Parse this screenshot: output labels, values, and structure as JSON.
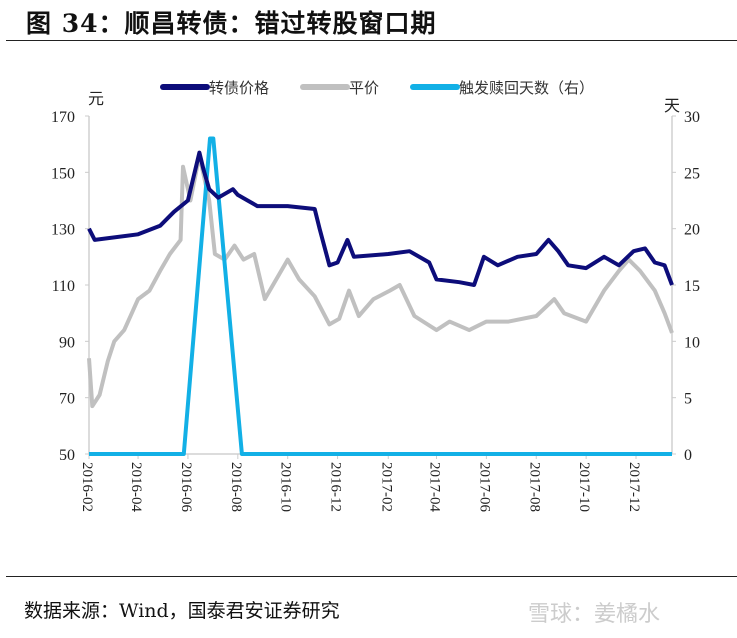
{
  "title": "图 34：顺昌转债：错过转股窗口期",
  "source": "数据来源：Wind，国泰君安证券研究",
  "watermark": "雪球：姜橘水",
  "chart_data": {
    "type": "line",
    "title": "",
    "left_unit": "元",
    "right_unit": "天",
    "ylim_left": [
      50,
      170
    ],
    "yticks_left": [
      50,
      70,
      90,
      110,
      130,
      150,
      170
    ],
    "ylim_right": [
      0,
      30
    ],
    "yticks_right": [
      0,
      5,
      10,
      15,
      20,
      25,
      30
    ],
    "xticks": [
      "2016-02",
      "2016-04",
      "2016-06",
      "2016-08",
      "2016-10",
      "2016-12",
      "2017-02",
      "2017-04",
      "2017-06",
      "2017-08",
      "2017-10",
      "2017-12"
    ],
    "xrange": [
      "2016-02-01",
      "2018-01-14"
    ],
    "grid": false,
    "legend": "top",
    "series": [
      {
        "name": "转债价格",
        "axis": "left",
        "color": "#0d0d7a",
        "x": [
          "2016-02-01",
          "2016-02-08",
          "2016-04-01",
          "2016-04-28",
          "2016-05-15",
          "2016-06-01",
          "2016-06-15",
          "2016-06-20",
          "2016-06-27",
          "2016-07-08",
          "2016-07-26",
          "2016-08-01",
          "2016-08-13",
          "2016-08-25",
          "2016-10-01",
          "2016-11-03",
          "2016-11-09",
          "2016-11-21",
          "2016-12-01",
          "2016-12-13",
          "2016-12-21",
          "2017-02-01",
          "2017-02-27",
          "2017-03-23",
          "2017-04-01",
          "2017-04-29",
          "2017-05-17",
          "2017-05-29",
          "2017-06-15",
          "2017-07-09",
          "2017-08-01",
          "2017-08-16",
          "2017-08-28",
          "2017-09-09",
          "2017-10-01",
          "2017-10-23",
          "2017-11-10",
          "2017-11-28",
          "2017-12-12",
          "2017-12-24",
          "2018-01-05",
          "2018-01-14"
        ],
        "y": [
          130,
          126,
          128,
          131,
          136,
          140,
          157,
          151,
          144,
          141,
          144,
          142,
          140,
          138,
          138,
          137,
          130,
          117,
          118,
          126,
          120,
          121,
          122,
          118,
          112,
          111,
          110,
          120,
          117,
          120,
          121,
          126,
          122,
          117,
          116,
          120,
          117,
          122,
          123,
          118,
          117,
          110
        ]
      },
      {
        "name": "平价",
        "axis": "left",
        "color": "#c0c0c0",
        "x": [
          "2016-02-01",
          "2016-02-05",
          "2016-02-14",
          "2016-02-24",
          "2016-03-03",
          "2016-03-15",
          "2016-04-01",
          "2016-04-15",
          "2016-04-28",
          "2016-05-10",
          "2016-05-23",
          "2016-05-26",
          "2016-06-04",
          "2016-06-15",
          "2016-06-27",
          "2016-07-04",
          "2016-07-16",
          "2016-07-28",
          "2016-08-08",
          "2016-08-21",
          "2016-09-03",
          "2016-10-01",
          "2016-10-15",
          "2016-11-03",
          "2016-11-21",
          "2016-12-03",
          "2016-12-15",
          "2016-12-27",
          "2017-01-14",
          "2017-02-03",
          "2017-02-15",
          "2017-03-05",
          "2017-04-01",
          "2017-04-17",
          "2017-05-11",
          "2017-06-01",
          "2017-06-28",
          "2017-08-01",
          "2017-08-23",
          "2017-09-04",
          "2017-10-01",
          "2017-10-23",
          "2017-11-10",
          "2017-11-22",
          "2017-12-06",
          "2017-12-24",
          "2018-01-05",
          "2018-01-14"
        ],
        "y": [
          84,
          67,
          71,
          83,
          90,
          94,
          105,
          108,
          115,
          121,
          126,
          152,
          140,
          156,
          140,
          121,
          119,
          124,
          119,
          121,
          105,
          119,
          112,
          106,
          96,
          98,
          108,
          99,
          105,
          108,
          110,
          99,
          94,
          97,
          94,
          97,
          97,
          99,
          105,
          100,
          97,
          108,
          115,
          119,
          115,
          108,
          100,
          93
        ]
      },
      {
        "name": "触发赎回天数（右）",
        "axis": "right",
        "color": "#12b0e6",
        "x": [
          "2016-02-01",
          "2016-05-27",
          "2016-06-28",
          "2016-07-02",
          "2016-08-06",
          "2018-01-14"
        ],
        "y": [
          0,
          0,
          28,
          28,
          0,
          0
        ]
      }
    ]
  }
}
